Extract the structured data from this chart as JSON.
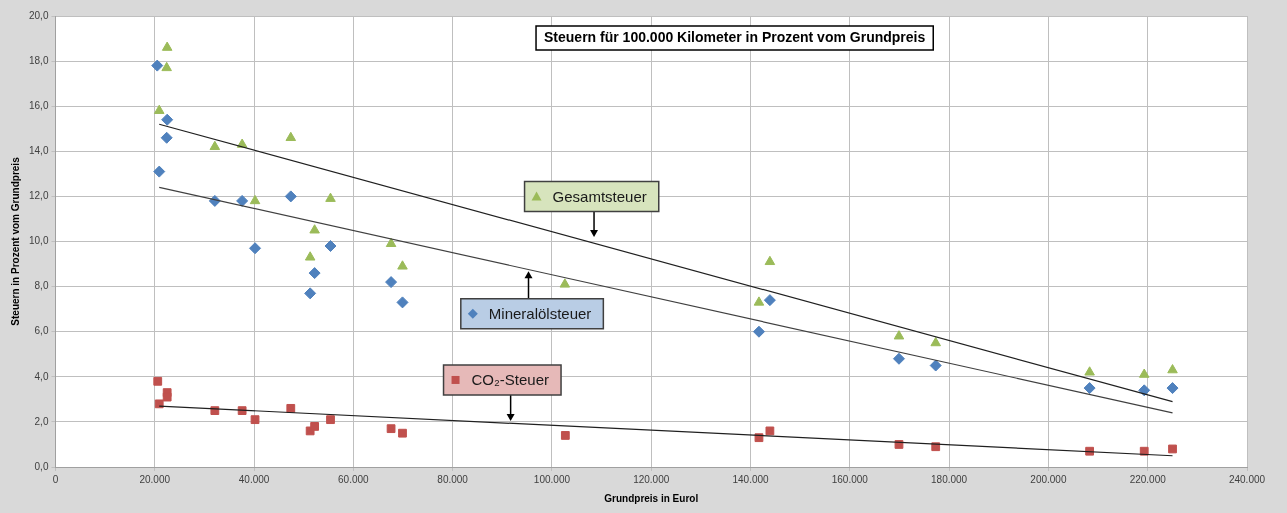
{
  "chart_data": {
    "type": "scatter",
    "title": "Steuern für 100.000 Kilometer in Prozent vom Grundpreis",
    "xlabel": "Grundpreis in Eurol",
    "ylabel": "Steuern in Prozent vom Grundpreis",
    "xlim": [
      0,
      240000
    ],
    "xticks": [
      {
        "value": 0,
        "label": "0"
      },
      {
        "value": 20000,
        "label": "20.000"
      },
      {
        "value": 40000,
        "label": "40.000"
      },
      {
        "value": 60000,
        "label": "60.000"
      },
      {
        "value": 80000,
        "label": "80.000"
      },
      {
        "value": 100000,
        "label": "100.000"
      },
      {
        "value": 120000,
        "label": "120.000"
      },
      {
        "value": 140000,
        "label": "140.000"
      },
      {
        "value": 160000,
        "label": "160.000"
      },
      {
        "value": 180000,
        "label": "180.000"
      },
      {
        "value": 200000,
        "label": "200.000"
      },
      {
        "value": 220000,
        "label": "220.000"
      },
      {
        "value": 240000,
        "label": "240.000"
      }
    ],
    "ylim": [
      0,
      20
    ],
    "yticks": [
      {
        "value": 0,
        "label": "0,0"
      },
      {
        "value": 2,
        "label": "2,0"
      },
      {
        "value": 4,
        "label": "4,0"
      },
      {
        "value": 6,
        "label": "6,0"
      },
      {
        "value": 8,
        "label": "8,0"
      },
      {
        "value": 10,
        "label": "10,0"
      },
      {
        "value": 12,
        "label": "12,0"
      },
      {
        "value": 14,
        "label": "14,0"
      },
      {
        "value": 16,
        "label": "16,0"
      },
      {
        "value": 18,
        "label": "18,0"
      },
      {
        "value": 20,
        "label": "20,0"
      }
    ],
    "grid": true,
    "legend": "center",
    "series": [
      {
        "name": "Mineralölsteuer",
        "type": "scatter",
        "marker": "diamond",
        "color": "#4f81bd",
        "x": [
          20500,
          22500,
          22400,
          20900,
          32100,
          37600,
          40200,
          47400,
          51300,
          52200,
          55400,
          67600,
          69900,
          141700,
          143900,
          169900,
          177300,
          208300,
          219300,
          225000
        ],
        "values": [
          17.8,
          15.4,
          14.6,
          13.1,
          11.8,
          11.8,
          9.7,
          12.0,
          7.7,
          8.6,
          9.8,
          8.2,
          7.3,
          6.0,
          7.4,
          4.8,
          4.5,
          3.5,
          3.4,
          3.5
        ]
      },
      {
        "name": "Gesamtsteuer",
        "type": "scatter",
        "marker": "triangle",
        "color": "#9bbb59",
        "x": [
          22500,
          22400,
          20900,
          32100,
          37600,
          40200,
          47400,
          51300,
          52200,
          55400,
          67600,
          69900,
          102600,
          141700,
          143900,
          169900,
          177300,
          208300,
          219300,
          225000
        ],
        "values": [
          18.6,
          17.7,
          15.8,
          14.2,
          14.3,
          11.8,
          14.6,
          9.3,
          10.5,
          11.9,
          9.9,
          8.9,
          8.1,
          7.3,
          9.1,
          5.8,
          5.5,
          4.2,
          4.1,
          4.3
        ]
      },
      {
        "name": "CO₂-Steuer",
        "type": "scatter",
        "marker": "square",
        "color": "#c0504d",
        "x": [
          20600,
          22500,
          22500,
          20900,
          32100,
          37600,
          40200,
          47400,
          51300,
          52200,
          55400,
          67600,
          69900,
          102700,
          141700,
          143900,
          169900,
          177300,
          208300,
          219300,
          225000
        ],
        "values": [
          3.8,
          3.3,
          3.1,
          2.8,
          2.5,
          2.5,
          2.1,
          2.6,
          1.6,
          1.8,
          2.1,
          1.7,
          1.5,
          1.4,
          1.3,
          1.6,
          1.0,
          0.9,
          0.7,
          0.7,
          0.8
        ]
      },
      {
        "type": "line",
        "marker": "none",
        "line_style": "solid",
        "color": "#404040",
        "x": [
          20900,
          225000
        ],
        "values": [
          12.4,
          2.4
        ]
      },
      {
        "type": "line",
        "marker": "none",
        "line_style": "solid",
        "color": "#202020",
        "x": [
          20900,
          225000
        ],
        "values": [
          15.2,
          2.9
        ]
      },
      {
        "type": "line",
        "marker": "none",
        "line_style": "solid",
        "color": "#202020",
        "x": [
          20900,
          225000
        ],
        "values": [
          2.7,
          0.5
        ]
      }
    ]
  }
}
